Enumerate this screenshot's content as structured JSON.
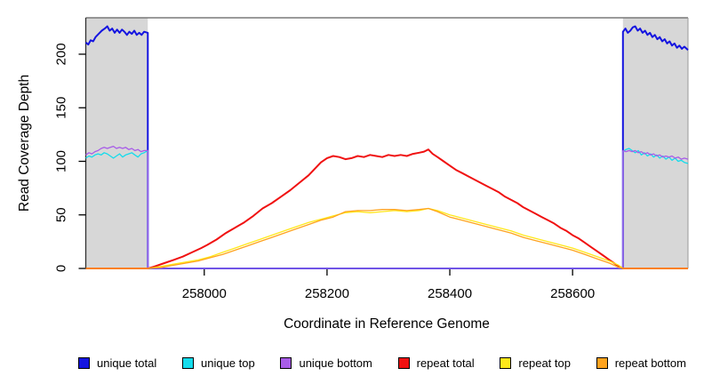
{
  "chart_data": {
    "type": "line",
    "title": "",
    "xlabel": "Coordinate in Reference Genome",
    "ylabel": "Read Coverage Depth",
    "xlim": [
      257807,
      258788
    ],
    "ylim": [
      0,
      234
    ],
    "x_ticks": [
      258000,
      258200,
      258400,
      258600
    ],
    "y_ticks": [
      0,
      50,
      100,
      150,
      200
    ],
    "grid": false,
    "legend_position": "bottom",
    "plot_border_color": "#787878",
    "shaded_regions": [
      {
        "name": "left-flank-region",
        "x0": 257807,
        "x1": 257908,
        "color": "#d7d7d7"
      },
      {
        "name": "right-flank-region",
        "x0": 258682,
        "x1": 258788,
        "color": "#d7d7d7"
      }
    ],
    "series": [
      {
        "name": "unique total",
        "color": "#1414e0",
        "width": 2,
        "points": [
          [
            257807,
            211
          ],
          [
            257811,
            209
          ],
          [
            257815,
            213
          ],
          [
            257819,
            212
          ],
          [
            257823,
            216
          ],
          [
            257828,
            219
          ],
          [
            257833,
            222
          ],
          [
            257838,
            224
          ],
          [
            257842,
            226
          ],
          [
            257846,
            222
          ],
          [
            257850,
            224
          ],
          [
            257854,
            220
          ],
          [
            257858,
            223
          ],
          [
            257862,
            220
          ],
          [
            257866,
            223
          ],
          [
            257870,
            221
          ],
          [
            257874,
            218
          ],
          [
            257878,
            221
          ],
          [
            257882,
            219
          ],
          [
            257886,
            222
          ],
          [
            257890,
            218
          ],
          [
            257894,
            220
          ],
          [
            257898,
            218
          ],
          [
            257902,
            221
          ],
          [
            257908,
            220
          ],
          [
            257908,
            0
          ],
          [
            258682,
            0
          ],
          [
            258682,
            221
          ],
          [
            258686,
            224
          ],
          [
            258690,
            220
          ],
          [
            258694,
            222
          ],
          [
            258698,
            225
          ],
          [
            258702,
            226
          ],
          [
            258706,
            222
          ],
          [
            258710,
            224
          ],
          [
            258714,
            220
          ],
          [
            258718,
            222
          ],
          [
            258722,
            218
          ],
          [
            258726,
            220
          ],
          [
            258730,
            216
          ],
          [
            258734,
            218
          ],
          [
            258738,
            214
          ],
          [
            258742,
            216
          ],
          [
            258746,
            212
          ],
          [
            258750,
            214
          ],
          [
            258754,
            210
          ],
          [
            258758,
            212
          ],
          [
            258762,
            208
          ],
          [
            258766,
            210
          ],
          [
            258770,
            206
          ],
          [
            258774,
            208
          ],
          [
            258778,
            205
          ],
          [
            258782,
            207
          ],
          [
            258788,
            204
          ]
        ]
      },
      {
        "name": "unique top",
        "color": "#14dcec",
        "width": 1.3,
        "points": [
          [
            257807,
            103
          ],
          [
            257812,
            105
          ],
          [
            257817,
            104
          ],
          [
            257822,
            106
          ],
          [
            257827,
            107
          ],
          [
            257832,
            106
          ],
          [
            257837,
            108
          ],
          [
            257842,
            107
          ],
          [
            257847,
            105
          ],
          [
            257852,
            103
          ],
          [
            257857,
            105
          ],
          [
            257862,
            107
          ],
          [
            257867,
            104
          ],
          [
            257872,
            106
          ],
          [
            257877,
            107
          ],
          [
            257882,
            108
          ],
          [
            257887,
            106
          ],
          [
            257892,
            104
          ],
          [
            257897,
            107
          ],
          [
            257902,
            108
          ],
          [
            257908,
            110
          ],
          [
            257908,
            0
          ],
          [
            258682,
            0
          ],
          [
            258682,
            109
          ],
          [
            258687,
            111
          ],
          [
            258692,
            112
          ],
          [
            258697,
            110
          ],
          [
            258702,
            108
          ],
          [
            258707,
            110
          ],
          [
            258712,
            106
          ],
          [
            258717,
            108
          ],
          [
            258722,
            105
          ],
          [
            258727,
            107
          ],
          [
            258732,
            104
          ],
          [
            258737,
            106
          ],
          [
            258742,
            103
          ],
          [
            258747,
            105
          ],
          [
            258752,
            102
          ],
          [
            258757,
            104
          ],
          [
            258762,
            101
          ],
          [
            258767,
            103
          ],
          [
            258772,
            100
          ],
          [
            258777,
            101
          ],
          [
            258782,
            99
          ],
          [
            258788,
            98
          ]
        ]
      },
      {
        "name": "unique bottom",
        "color": "#a85ce8",
        "width": 1.3,
        "points": [
          [
            257807,
            106
          ],
          [
            257812,
            108
          ],
          [
            257817,
            107
          ],
          [
            257822,
            109
          ],
          [
            257827,
            110
          ],
          [
            257832,
            112
          ],
          [
            257837,
            113
          ],
          [
            257842,
            112
          ],
          [
            257847,
            113
          ],
          [
            257852,
            114
          ],
          [
            257857,
            112
          ],
          [
            257862,
            113
          ],
          [
            257867,
            112
          ],
          [
            257872,
            113
          ],
          [
            257877,
            111
          ],
          [
            257882,
            112
          ],
          [
            257887,
            110
          ],
          [
            257892,
            111
          ],
          [
            257897,
            109
          ],
          [
            257902,
            110
          ],
          [
            257908,
            110
          ],
          [
            257908,
            0
          ],
          [
            258682,
            0
          ],
          [
            258682,
            110
          ],
          [
            258687,
            109
          ],
          [
            258692,
            110
          ],
          [
            258697,
            109
          ],
          [
            258702,
            110
          ],
          [
            258707,
            108
          ],
          [
            258712,
            109
          ],
          [
            258717,
            107
          ],
          [
            258722,
            108
          ],
          [
            258727,
            106
          ],
          [
            258732,
            107
          ],
          [
            258737,
            105
          ],
          [
            258742,
            106
          ],
          [
            258747,
            104
          ],
          [
            258752,
            105
          ],
          [
            258757,
            104
          ],
          [
            258762,
            105
          ],
          [
            258767,
            103
          ],
          [
            258772,
            104
          ],
          [
            258777,
            102
          ],
          [
            258782,
            103
          ],
          [
            258788,
            102
          ]
        ]
      },
      {
        "name": "repeat total",
        "color": "#f01111",
        "width": 2,
        "points": [
          [
            257807,
            0
          ],
          [
            257909,
            0
          ],
          [
            257920,
            2
          ],
          [
            257935,
            5
          ],
          [
            257950,
            8
          ],
          [
            257965,
            11
          ],
          [
            257980,
            15
          ],
          [
            257995,
            19
          ],
          [
            258005,
            22
          ],
          [
            258020,
            27
          ],
          [
            258035,
            33
          ],
          [
            258050,
            38
          ],
          [
            258065,
            43
          ],
          [
            258080,
            49
          ],
          [
            258095,
            56
          ],
          [
            258110,
            61
          ],
          [
            258125,
            67
          ],
          [
            258140,
            73
          ],
          [
            258155,
            80
          ],
          [
            258170,
            87
          ],
          [
            258180,
            93
          ],
          [
            258190,
            99
          ],
          [
            258200,
            103
          ],
          [
            258210,
            105
          ],
          [
            258220,
            104
          ],
          [
            258230,
            102
          ],
          [
            258240,
            103
          ],
          [
            258250,
            105
          ],
          [
            258260,
            104
          ],
          [
            258270,
            106
          ],
          [
            258280,
            105
          ],
          [
            258290,
            104
          ],
          [
            258300,
            106
          ],
          [
            258310,
            105
          ],
          [
            258320,
            106
          ],
          [
            258330,
            105
          ],
          [
            258340,
            107
          ],
          [
            258350,
            108
          ],
          [
            258358,
            109
          ],
          [
            258365,
            111
          ],
          [
            258372,
            107
          ],
          [
            258380,
            104
          ],
          [
            258390,
            100
          ],
          [
            258400,
            96
          ],
          [
            258410,
            92
          ],
          [
            258420,
            89
          ],
          [
            258430,
            86
          ],
          [
            258440,
            83
          ],
          [
            258450,
            80
          ],
          [
            258460,
            77
          ],
          [
            258470,
            74
          ],
          [
            258480,
            71
          ],
          [
            258490,
            67
          ],
          [
            258500,
            64
          ],
          [
            258510,
            61
          ],
          [
            258520,
            57
          ],
          [
            258530,
            54
          ],
          [
            258540,
            51
          ],
          [
            258550,
            48
          ],
          [
            258560,
            45
          ],
          [
            258570,
            42
          ],
          [
            258580,
            38
          ],
          [
            258590,
            35
          ],
          [
            258600,
            31
          ],
          [
            258610,
            28
          ],
          [
            258620,
            24
          ],
          [
            258630,
            20
          ],
          [
            258640,
            16
          ],
          [
            258650,
            12
          ],
          [
            258660,
            8
          ],
          [
            258670,
            4
          ],
          [
            258682,
            0
          ],
          [
            258788,
            0
          ]
        ]
      },
      {
        "name": "repeat top",
        "color": "#ffe81a",
        "width": 1.3,
        "points": [
          [
            257807,
            0
          ],
          [
            257909,
            0
          ],
          [
            257930,
            2
          ],
          [
            257950,
            4
          ],
          [
            257970,
            6
          ],
          [
            257990,
            8
          ],
          [
            258010,
            11
          ],
          [
            258030,
            15
          ],
          [
            258050,
            19
          ],
          [
            258070,
            23
          ],
          [
            258090,
            27
          ],
          [
            258110,
            31
          ],
          [
            258130,
            35
          ],
          [
            258150,
            39
          ],
          [
            258170,
            43
          ],
          [
            258190,
            46
          ],
          [
            258210,
            49
          ],
          [
            258230,
            52
          ],
          [
            258250,
            53
          ],
          [
            258270,
            52
          ],
          [
            258290,
            53
          ],
          [
            258310,
            54
          ],
          [
            258330,
            53
          ],
          [
            258350,
            54
          ],
          [
            258365,
            56
          ],
          [
            258380,
            54
          ],
          [
            258400,
            50
          ],
          [
            258420,
            47
          ],
          [
            258440,
            44
          ],
          [
            258460,
            41
          ],
          [
            258480,
            38
          ],
          [
            258500,
            35
          ],
          [
            258520,
            31
          ],
          [
            258540,
            28
          ],
          [
            258560,
            25
          ],
          [
            258580,
            22
          ],
          [
            258600,
            19
          ],
          [
            258620,
            15
          ],
          [
            258640,
            11
          ],
          [
            258660,
            7
          ],
          [
            258675,
            3
          ],
          [
            258682,
            0
          ],
          [
            258788,
            0
          ]
        ]
      },
      {
        "name": "repeat bottom",
        "color": "#ffa31e",
        "width": 1.3,
        "points": [
          [
            257807,
            0
          ],
          [
            257909,
            0
          ],
          [
            257930,
            1
          ],
          [
            257950,
            3
          ],
          [
            257970,
            5
          ],
          [
            257990,
            7
          ],
          [
            258010,
            10
          ],
          [
            258030,
            13
          ],
          [
            258050,
            17
          ],
          [
            258070,
            21
          ],
          [
            258090,
            25
          ],
          [
            258110,
            29
          ],
          [
            258130,
            33
          ],
          [
            258150,
            37
          ],
          [
            258170,
            41
          ],
          [
            258190,
            45
          ],
          [
            258210,
            48
          ],
          [
            258230,
            53
          ],
          [
            258250,
            54
          ],
          [
            258270,
            54
          ],
          [
            258290,
            55
          ],
          [
            258310,
            55
          ],
          [
            258330,
            54
          ],
          [
            258350,
            55
          ],
          [
            258365,
            56
          ],
          [
            258380,
            53
          ],
          [
            258400,
            48
          ],
          [
            258420,
            45
          ],
          [
            258440,
            42
          ],
          [
            258460,
            39
          ],
          [
            258480,
            36
          ],
          [
            258500,
            33
          ],
          [
            258520,
            29
          ],
          [
            258540,
            26
          ],
          [
            258560,
            23
          ],
          [
            258580,
            20
          ],
          [
            258600,
            17
          ],
          [
            258620,
            13
          ],
          [
            258640,
            9
          ],
          [
            258660,
            5
          ],
          [
            258675,
            1
          ],
          [
            258682,
            0
          ],
          [
            258788,
            0
          ]
        ]
      }
    ]
  }
}
